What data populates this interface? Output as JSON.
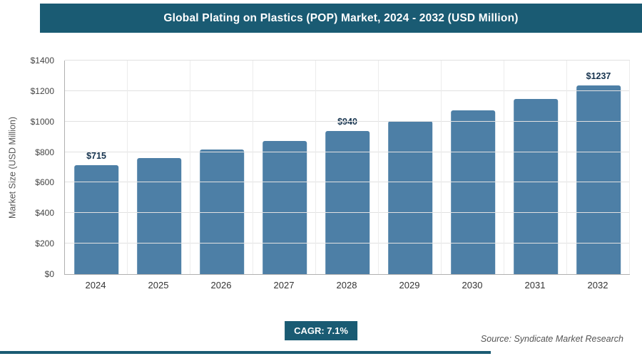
{
  "chart_data": {
    "type": "bar",
    "title": "Global Plating on Plastics (POP) Market, 2024 - 2032 (USD Million)",
    "categories": [
      "2024",
      "2025",
      "2026",
      "2027",
      "2028",
      "2029",
      "2030",
      "2031",
      "2032"
    ],
    "values": [
      715,
      760,
      815,
      872,
      940,
      1005,
      1075,
      1150,
      1237
    ],
    "data_labels": [
      "$715",
      null,
      null,
      null,
      "$940",
      null,
      null,
      null,
      "$1237"
    ],
    "xlabel": "",
    "ylabel": "Market Size (USD Million)",
    "ylim": [
      0,
      1400
    ],
    "ytick_step": 200,
    "ytick_labels": [
      "$0",
      "$200",
      "$400",
      "$600",
      "$800",
      "$1000",
      "$1200",
      "$1400"
    ],
    "grid": true,
    "legend": "none",
    "bar_color": "#4d7fa6"
  },
  "footer": {
    "cagr_label": "CAGR: 7.1%",
    "source": "Source: Syndicate Market Research"
  },
  "colors": {
    "accent": "#1a5b73",
    "bar": "#4d7fa6",
    "grid": "#e1e1e1",
    "value_label": "#16334e"
  }
}
